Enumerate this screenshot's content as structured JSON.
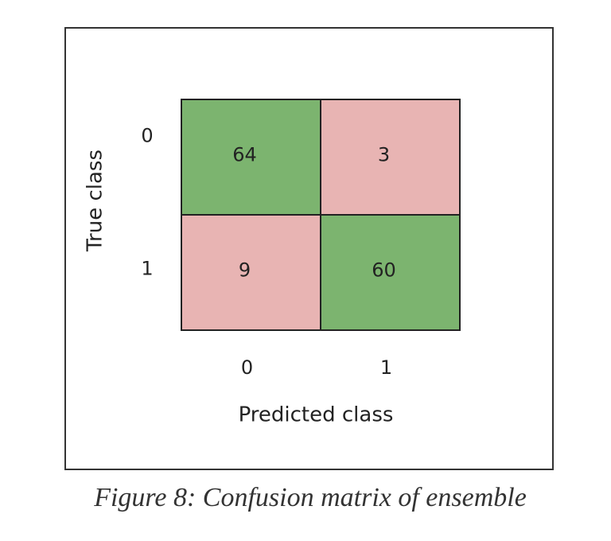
{
  "chart_data": {
    "type": "heatmap",
    "x_categories": [
      "0",
      "1"
    ],
    "y_categories": [
      "0",
      "1"
    ],
    "values": [
      [
        64,
        3
      ],
      [
        9,
        60
      ]
    ],
    "xlabel": "Predicted class",
    "ylabel": "True class",
    "caption": "Figure 8: Confusion matrix of ensemble",
    "diagonal_color": "#7cb46f",
    "off_diagonal_color": "#e8b4b3"
  }
}
